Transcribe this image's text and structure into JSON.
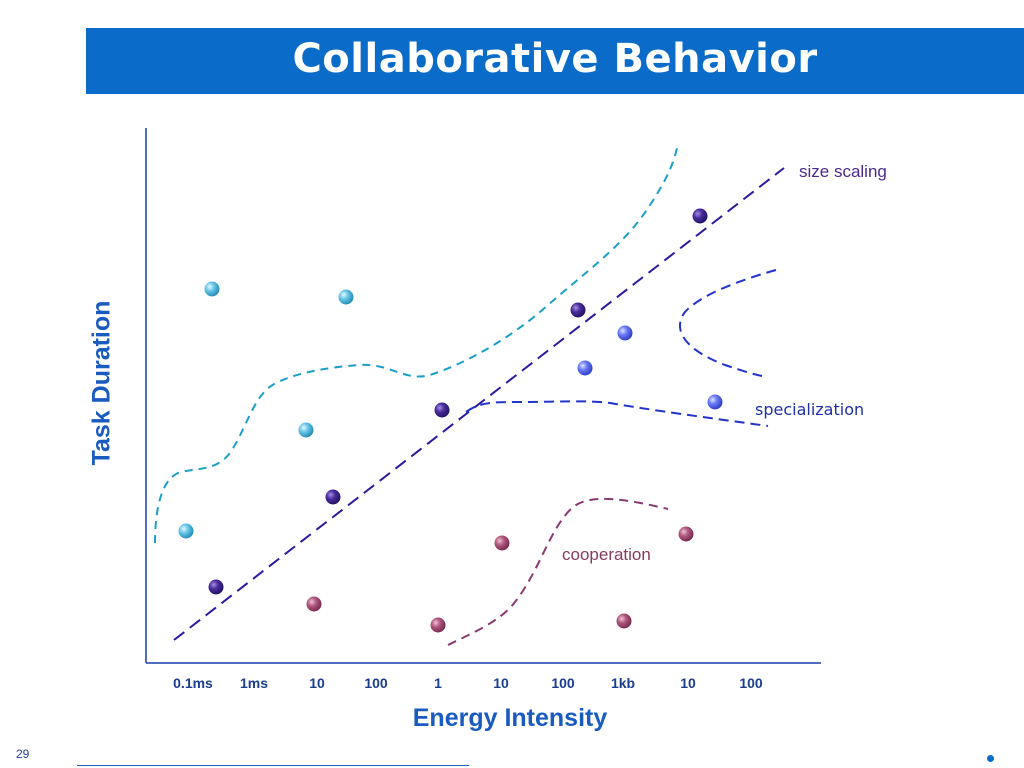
{
  "title": "Collaborative Behavior",
  "slide_number": "29",
  "chart_data": {
    "type": "scatter",
    "xlabel": "Energy Intensity",
    "ylabel": "Task Duration",
    "x_ticks": [
      "0.1ms",
      "1ms",
      "10",
      "100",
      "1",
      "10",
      "100",
      "1kb",
      "10",
      "100"
    ],
    "curve_labels": {
      "size_scaling": "size scaling",
      "specialization": "specialization",
      "cooperation": "cooperation"
    },
    "colors": {
      "axis": "#1a3da8",
      "size_scaling_line": "#2a1a9e",
      "teal_boundary": "#1a9fc8",
      "specialization_boundary": "#2233cc",
      "cooperation_boundary": "#8a3a70",
      "teal_point": "#5cc3e3",
      "purple_point": "#4a2d9a",
      "blue_point": "#5b6cf0",
      "mauve_point": "#b0587e"
    }
  }
}
